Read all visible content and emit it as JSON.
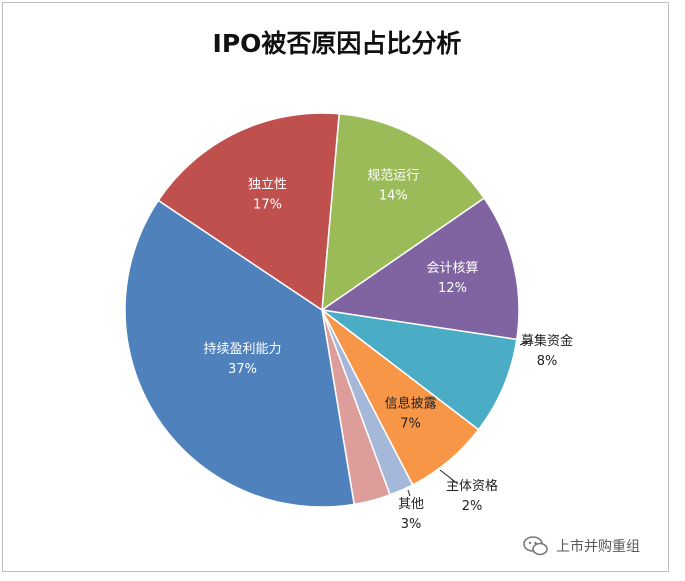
{
  "chart_data": {
    "type": "pie",
    "title": "IPO被否原因占比分析",
    "slices": [
      {
        "label": "规范运行",
        "value": 14,
        "pct_label": "14%",
        "color": "#9bbb59",
        "label_pos": "inside"
      },
      {
        "label": "会计核算",
        "value": 12,
        "pct_label": "12%",
        "color": "#8064a2",
        "label_pos": "inside"
      },
      {
        "label": "募集资金",
        "value": 8,
        "pct_label": "8%",
        "color": "#4bacc6",
        "label_pos": "outside"
      },
      {
        "label": "信息披露",
        "value": 7,
        "pct_label": "7%",
        "color": "#f79646",
        "label_pos": "inside-dark"
      },
      {
        "label": "主体资格",
        "value": 2,
        "pct_label": "2%",
        "color": "#a5b8da",
        "label_pos": "outside"
      },
      {
        "label": "其他",
        "value": 3,
        "pct_label": "3%",
        "color": "#dc9d9b",
        "label_pos": "outside"
      },
      {
        "label": "持续盈利能力",
        "value": 37,
        "pct_label": "37%",
        "color": "#4f81bd",
        "label_pos": "inside"
      },
      {
        "label": "独立性",
        "value": 17,
        "pct_label": "17%",
        "color": "#c0504d",
        "label_pos": "inside"
      }
    ],
    "legend": "none"
  },
  "watermark": {
    "text": "上市并购重组",
    "icon": "wechat-icon"
  }
}
